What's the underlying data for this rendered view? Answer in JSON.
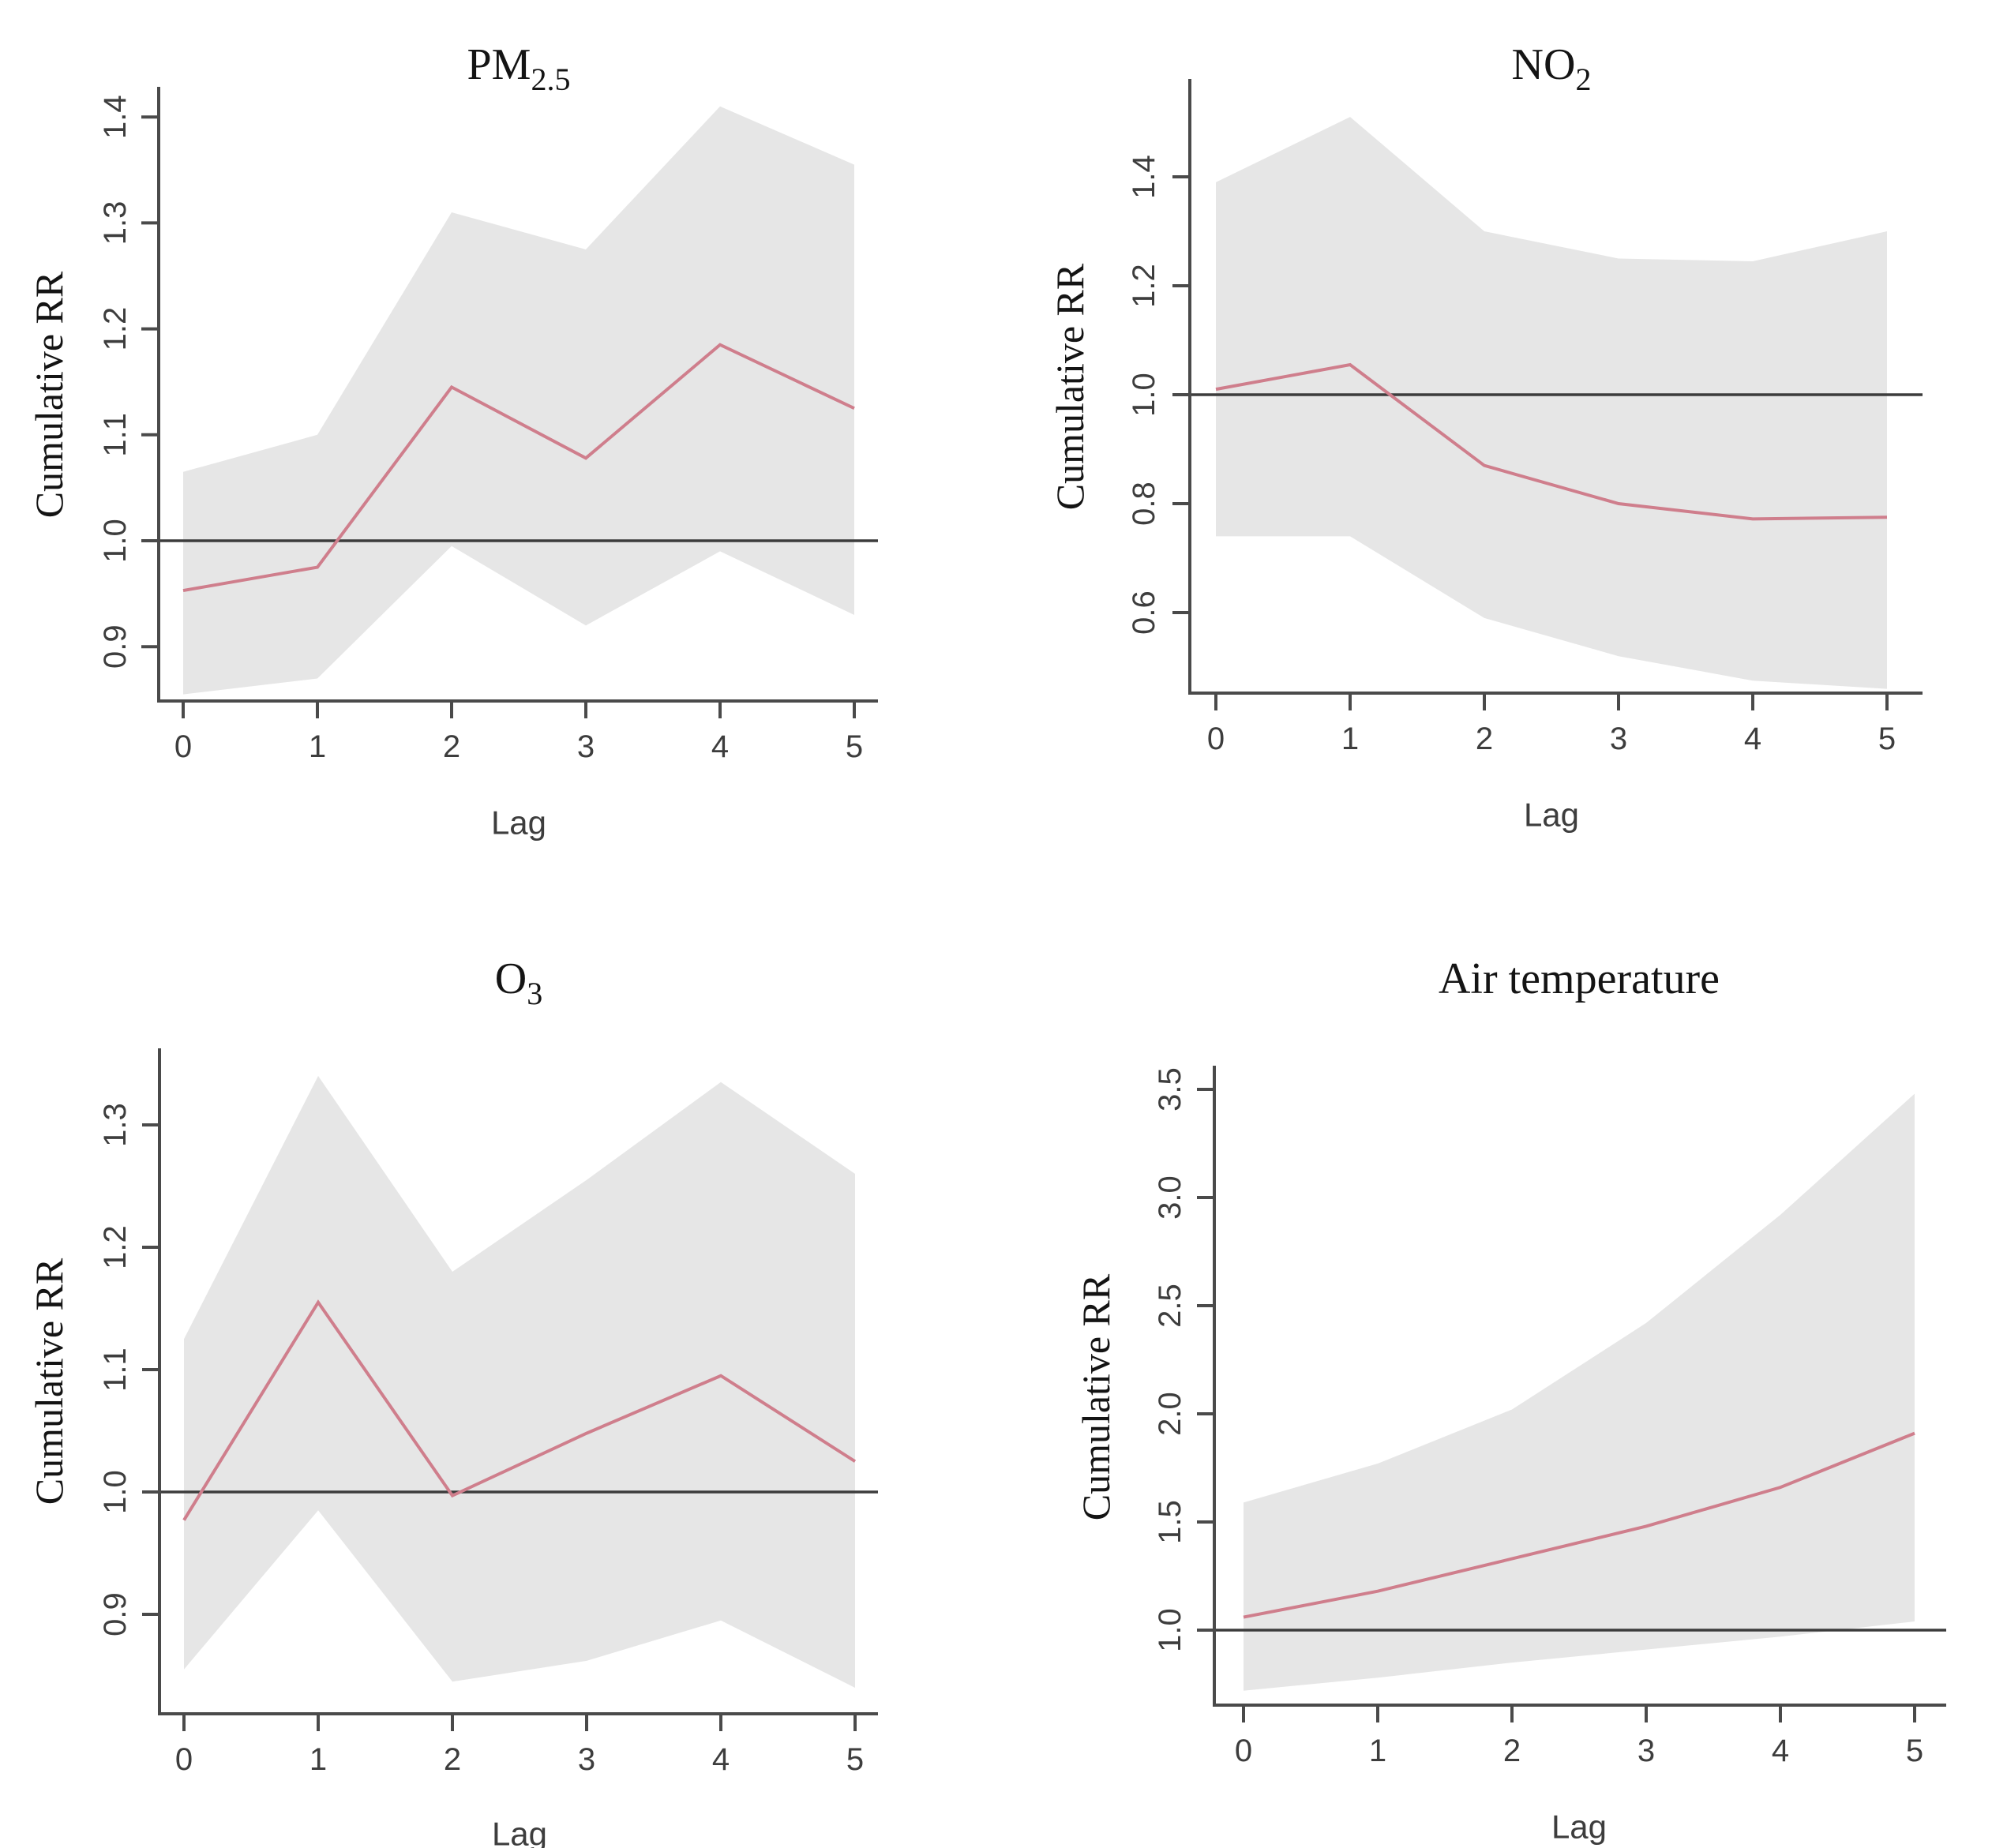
{
  "figure": {
    "background": "#ffffff",
    "xlabel": "Lag",
    "ylabel": "Cumulative RR"
  },
  "colors": {
    "band": "#e6e6e6",
    "line": "#cf7e8c",
    "ref_line": "#3c3c3c",
    "axis": "#4a4a4a",
    "tick_text": "#3d3d3d",
    "title_text": "#141414"
  },
  "chart_data": [
    {
      "type": "line",
      "title": "PM2.5",
      "title_main": "PM",
      "title_sub": "2.5",
      "xlabel": "Lag",
      "ylabel": "Cumulative RR",
      "x": [
        0,
        1,
        2,
        3,
        4,
        5
      ],
      "xticks": [
        0,
        1,
        2,
        3,
        4,
        5
      ],
      "yticks": [
        0.9,
        1.0,
        1.1,
        1.2,
        1.3,
        1.4
      ],
      "ylim": [
        0.83,
        1.44
      ],
      "ref_line": 1.0,
      "grid": false,
      "legend": "none",
      "series": [
        {
          "name": "cumulative RR",
          "role": "line",
          "values": [
            0.953,
            0.975,
            1.145,
            1.078,
            1.185,
            1.125
          ]
        },
        {
          "name": "95% CI lower",
          "role": "band-lower",
          "values": [
            0.855,
            0.87,
            0.995,
            0.92,
            0.99,
            0.93
          ]
        },
        {
          "name": "95% CI upper",
          "role": "band-upper",
          "values": [
            1.065,
            1.1,
            1.31,
            1.275,
            1.41,
            1.355
          ]
        }
      ]
    },
    {
      "type": "line",
      "title": "NO2",
      "title_main": "NO",
      "title_sub": "2",
      "xlabel": "Lag",
      "ylabel": "Cumulative RR",
      "x": [
        0,
        1,
        2,
        3,
        4,
        5
      ],
      "xticks": [
        0,
        1,
        2,
        3,
        4,
        5
      ],
      "yticks": [
        0.6,
        0.8,
        1.0,
        1.2,
        1.4
      ],
      "ylim": [
        0.45,
        1.57
      ],
      "ref_line": 1.0,
      "grid": false,
      "legend": "none",
      "series": [
        {
          "name": "cumulative RR",
          "role": "line",
          "values": [
            1.01,
            1.055,
            0.87,
            0.8,
            0.772,
            0.775
          ]
        },
        {
          "name": "95% CI lower",
          "role": "band-lower",
          "values": [
            0.74,
            0.74,
            0.59,
            0.52,
            0.475,
            0.46
          ]
        },
        {
          "name": "95% CI upper",
          "role": "band-upper",
          "values": [
            1.39,
            1.51,
            1.3,
            1.25,
            1.245,
            1.3
          ]
        }
      ]
    },
    {
      "type": "line",
      "title": "O3",
      "title_main": "O",
      "title_sub": "3",
      "xlabel": "Lag",
      "ylabel": "Cumulative RR",
      "x": [
        0,
        1,
        2,
        3,
        4,
        5
      ],
      "xticks": [
        0,
        1,
        2,
        3,
        4,
        5
      ],
      "yticks": [
        0.9,
        1.0,
        1.1,
        1.2,
        1.3
      ],
      "ylim": [
        0.82,
        1.36
      ],
      "ref_line": 1.0,
      "grid": false,
      "legend": "none",
      "series": [
        {
          "name": "cumulative RR",
          "role": "line",
          "values": [
            0.977,
            1.155,
            0.997,
            1.048,
            1.095,
            1.025
          ]
        },
        {
          "name": "95% CI lower",
          "role": "band-lower",
          "values": [
            0.855,
            0.985,
            0.845,
            0.862,
            0.895,
            0.84
          ]
        },
        {
          "name": "95% CI upper",
          "role": "band-upper",
          "values": [
            1.125,
            1.34,
            1.18,
            1.255,
            1.335,
            1.26
          ]
        }
      ]
    },
    {
      "type": "line",
      "title": "Air temperature",
      "title_main": "Air temperature",
      "title_sub": "",
      "xlabel": "Lag",
      "ylabel": "Cumulative RR",
      "x": [
        0,
        1,
        2,
        3,
        4,
        5
      ],
      "xticks": [
        0,
        1,
        2,
        3,
        4,
        5
      ],
      "yticks": [
        1.0,
        1.5,
        2.0,
        2.5,
        3.0,
        3.5
      ],
      "ylim": [
        0.66,
        3.61
      ],
      "ref_line": 1.0,
      "grid": false,
      "legend": "none",
      "series": [
        {
          "name": "cumulative RR",
          "role": "line",
          "values": [
            1.06,
            1.18,
            1.33,
            1.48,
            1.66,
            1.91
          ]
        },
        {
          "name": "95% CI lower",
          "role": "band-lower",
          "values": [
            0.72,
            0.78,
            0.85,
            0.91,
            0.97,
            1.04
          ]
        },
        {
          "name": "95% CI upper",
          "role": "band-upper",
          "values": [
            1.59,
            1.77,
            2.02,
            2.42,
            2.92,
            3.48
          ]
        }
      ]
    }
  ]
}
